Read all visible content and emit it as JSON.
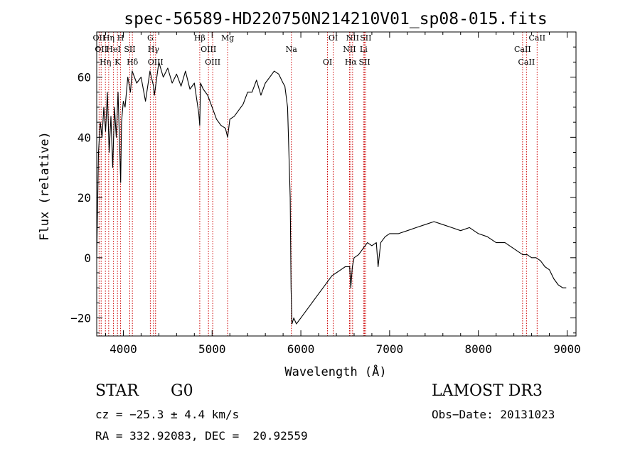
{
  "chart_data": {
    "type": "line",
    "title": "spec-56589-HD220750N214210V01_sp08-015.fits",
    "xlabel": "Wavelength (Å)",
    "ylabel": "Flux (relative)",
    "xlim": [
      3700,
      9100
    ],
    "ylim": [
      -26,
      75
    ],
    "x_ticks": [
      4000,
      5000,
      6000,
      7000,
      8000,
      9000
    ],
    "y_ticks": [
      -20,
      0,
      20,
      40,
      60
    ],
    "grid": false,
    "series": [
      {
        "x": [
          3700,
          3720,
          3740,
          3760,
          3780,
          3800,
          3820,
          3840,
          3860,
          3880,
          3900,
          3920,
          3940,
          3960,
          3970,
          3980,
          4000,
          4020,
          4050,
          4080,
          4100,
          4150,
          4200,
          4250,
          4300,
          4340,
          4350,
          4400,
          4450,
          4500,
          4550,
          4600,
          4650,
          4700,
          4750,
          4800,
          4850,
          4861,
          4870,
          4900,
          4950,
          5000,
          5050,
          5100,
          5150,
          5175,
          5200,
          5250,
          5300,
          5350,
          5400,
          5450,
          5500,
          5550,
          5600,
          5650,
          5700,
          5750,
          5800,
          5820,
          5850,
          5880,
          5890,
          5900,
          5920,
          5950,
          6000,
          6050,
          6100,
          6150,
          6200,
          6250,
          6300,
          6350,
          6400,
          6450,
          6500,
          6550,
          6563,
          6580,
          6600,
          6650,
          6700,
          6750,
          6800,
          6850,
          6870,
          6900,
          6950,
          7000,
          7100,
          7200,
          7300,
          7400,
          7500,
          7600,
          7700,
          7800,
          7900,
          8000,
          8100,
          8200,
          8300,
          8400,
          8500,
          8550,
          8600,
          8650,
          8700,
          8750,
          8800,
          8850,
          8900,
          8950,
          8990
        ],
        "y": [
          0,
          35,
          45,
          40,
          50,
          42,
          55,
          35,
          47,
          30,
          50,
          40,
          55,
          35,
          25,
          45,
          52,
          50,
          60,
          55,
          62,
          58,
          60,
          52,
          62,
          57,
          54,
          65,
          60,
          63,
          58,
          61,
          57,
          62,
          56,
          58,
          48,
          44,
          58,
          56,
          54,
          50,
          46,
          44,
          43,
          40,
          46,
          47,
          49,
          51,
          55,
          55,
          59,
          54,
          58,
          60,
          62,
          61,
          58,
          57,
          50,
          20,
          -10,
          -22,
          -20,
          -22,
          -20,
          -18,
          -16,
          -14,
          -12,
          -10,
          -8,
          -6,
          -5,
          -4,
          -3,
          -3,
          -10,
          -3,
          0,
          1,
          3,
          5,
          4,
          5,
          -3,
          5,
          7,
          8,
          8,
          9,
          10,
          11,
          12,
          11,
          10,
          9,
          10,
          8,
          7,
          5,
          5,
          3,
          1,
          1,
          0,
          0,
          -1,
          -3,
          -4,
          -7,
          -9,
          -10,
          -10
        ]
      }
    ],
    "lines": [
      {
        "x": 3727,
        "label": "OII"
      },
      {
        "x": 3750,
        "label": "OII"
      },
      {
        "x": 3798,
        "label": "Hη"
      },
      {
        "x": 3835,
        "label": "Hη"
      },
      {
        "x": 3889,
        "label": "HeI"
      },
      {
        "x": 3934,
        "label": "K"
      },
      {
        "x": 3969,
        "label": "H"
      },
      {
        "x": 4072,
        "label": "SII"
      },
      {
        "x": 4102,
        "label": "Hδ"
      },
      {
        "x": 4304,
        "label": "G"
      },
      {
        "x": 4340,
        "label": "Hγ"
      },
      {
        "x": 4363,
        "label": "OIII"
      },
      {
        "x": 4861,
        "label": "Hβ"
      },
      {
        "x": 4959,
        "label": "OIII"
      },
      {
        "x": 5007,
        "label": "OIII"
      },
      {
        "x": 5175,
        "label": "Mg"
      },
      {
        "x": 5893,
        "label": "Na"
      },
      {
        "x": 6300,
        "label": "OI"
      },
      {
        "x": 6364,
        "label": "OI"
      },
      {
        "x": 6548,
        "label": "NII"
      },
      {
        "x": 6563,
        "label": "Hα"
      },
      {
        "x": 6583,
        "label": "NII"
      },
      {
        "x": 6707,
        "label": "Li"
      },
      {
        "x": 6717,
        "label": "SII"
      },
      {
        "x": 6731,
        "label": "SII"
      },
      {
        "x": 8498,
        "label": "CaII"
      },
      {
        "x": 8542,
        "label": "CaII"
      },
      {
        "x": 8662,
        "label": "CaII"
      }
    ],
    "line_color": "#cc0000",
    "spectrum_color": "#000000"
  },
  "info": {
    "object_type": "STAR",
    "subclass": "G0",
    "survey": "LAMOST DR3",
    "cz": "cz = −25.3 ± 4.4 km/s",
    "obs_date": "Obs−Date: 20131023",
    "coords": "RA = 332.92083, DEC =  20.92559"
  }
}
